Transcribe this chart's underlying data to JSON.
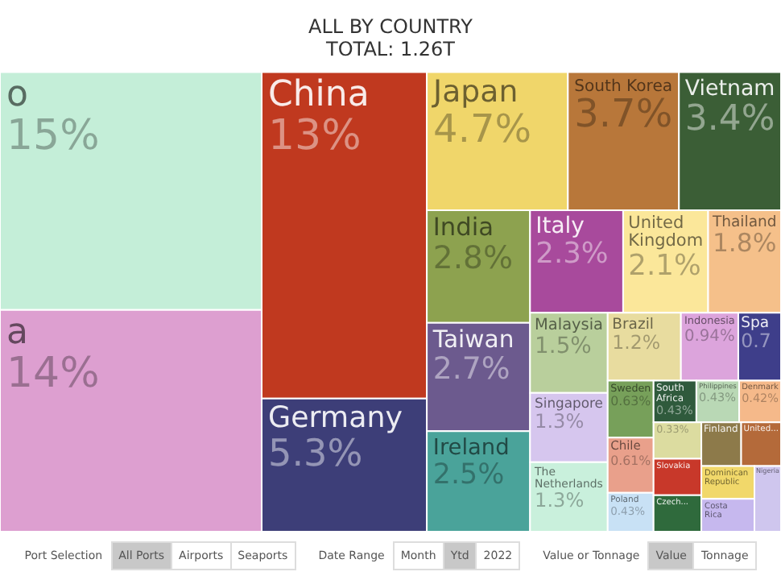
{
  "chart_data": {
    "type": "other",
    "title": "ALL BY COUNTRY",
    "subtitle": "TOTAL: 1.26T",
    "categories": [
      "o",
      "a",
      "China",
      "Germany",
      "Japan",
      "South Korea",
      "Vietnam",
      "India",
      "Taiwan",
      "Ireland",
      "Italy",
      "United Kingdom",
      "Thailand",
      "Malaysia",
      "Singapore",
      "The Netherlands",
      "Brazil",
      "Indonesia",
      "Spa",
      "Sweden",
      "Chile",
      "Poland",
      "South Africa",
      "Philippines",
      "Denmark",
      null,
      "Slovakia",
      "Czech...",
      "Finland",
      "United...",
      "Dominican Republic",
      "Costa Rica",
      "Nigeria"
    ],
    "values": [
      15,
      14,
      13,
      5.3,
      4.7,
      3.7,
      3.4,
      2.8,
      2.7,
      2.5,
      2.3,
      2.1,
      1.8,
      1.5,
      1.3,
      1.3,
      1.2,
      0.94,
      0.7,
      0.63,
      0.61,
      0.43,
      0.43,
      0.43,
      0.42,
      null,
      null,
      null,
      null,
      null,
      null,
      null,
      null
    ],
    "value_labels": [
      "15%",
      "14%",
      "13%",
      "5.3%",
      "4.7%",
      "3.7%",
      "3.4%",
      "2.8%",
      "2.7%",
      "2.5%",
      "2.3%",
      "2.1%",
      "1.8%",
      "1.5%",
      "1.3%",
      "1.3%",
      "1.2%",
      "0.94%",
      "0.7",
      "0.63%",
      "0.61%",
      "0.43%",
      "0.43%",
      "0.43%",
      "0.42%",
      "0.33%",
      null,
      null,
      null,
      null,
      null,
      null,
      null
    ],
    "colors": [
      "#c4eed8",
      "#dd9fd0",
      "#c0391f",
      "#3d3e78",
      "#f0d66a",
      "#b8773a",
      "#3b5e36",
      "#8da24f",
      "#6c5a8e",
      "#4aa39a",
      "#a84a9c",
      "#fbe79a",
      "#f5c08a",
      "#b9cf9c",
      "#d6c6ee",
      "#c9f0dc",
      "#e8dc9f",
      "#dca4dc",
      "#3e3e8a",
      "#77a05a",
      "#e9a08b",
      "#c8e1f5",
      "#2f5a3c",
      "#b9d8b5",
      "#f5b98a",
      "#dcdca0",
      "#c8382a",
      "#2f6a3c",
      "#8d7a4a",
      "#b46a3a",
      "#f1d86a",
      "#c6b8ee",
      "#cfc6ee"
    ],
    "annotations": [
      "Port Selection",
      "All Ports",
      "Airports",
      "Seaports",
      "Date Range",
      "Month",
      "Ytd",
      "2022",
      "Value or Tonnage",
      "Value",
      "Tonnage"
    ]
  }
}
